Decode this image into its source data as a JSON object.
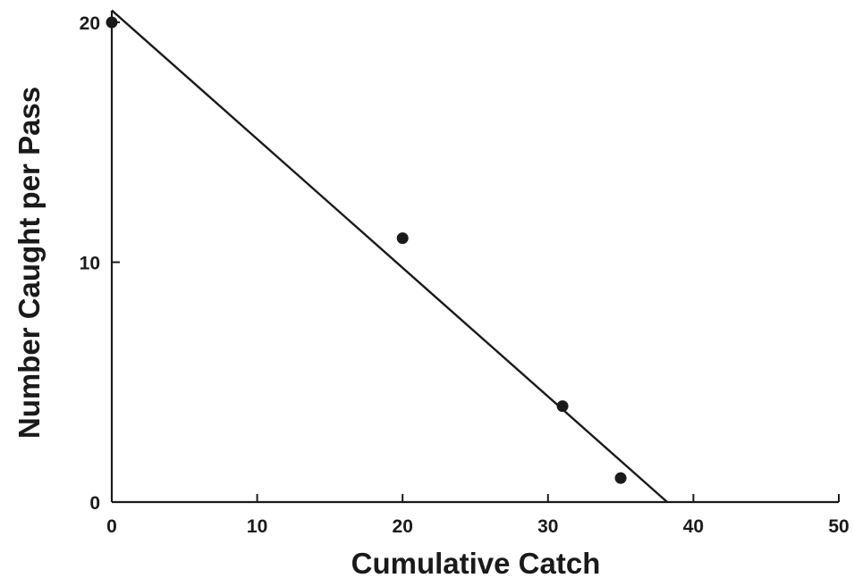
{
  "chart_data": {
    "type": "scatter",
    "xlabel": "Cumulative Catch",
    "ylabel": "Number Caught per Pass",
    "xlim": [
      0,
      50
    ],
    "ylim": [
      0,
      20
    ],
    "xticks": [
      0,
      10,
      20,
      30,
      40,
      50
    ],
    "xtick_labels": [
      "0",
      "10",
      "20",
      "30",
      "40",
      "50"
    ],
    "yticks": [
      0,
      10,
      20
    ],
    "ytick_labels": [
      "0",
      "10",
      "20"
    ],
    "grid": false,
    "legend": "none",
    "series": [
      {
        "x": [
          0,
          20,
          31,
          35
        ],
        "y": [
          20,
          11,
          4,
          1
        ]
      }
    ],
    "fit_line": {
      "x": [
        0,
        38.2
      ],
      "y": [
        20.5,
        0
      ]
    }
  }
}
